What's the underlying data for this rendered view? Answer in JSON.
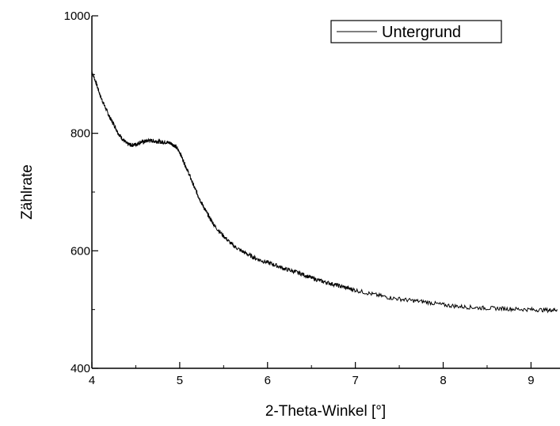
{
  "chart_data": {
    "type": "line",
    "title": "",
    "xlabel": "2-Theta-Winkel [°]",
    "ylabel": "Zählrate",
    "xlim": [
      4,
      9.33
    ],
    "ylim": [
      400,
      1000
    ],
    "x_ticks": [
      4,
      5,
      6,
      7,
      8,
      9
    ],
    "y_ticks": [
      400,
      600,
      800,
      1000
    ],
    "x_tick_labels": [
      "4",
      "5",
      "6",
      "7",
      "8",
      "9"
    ],
    "y_tick_labels": [
      "400",
      "600",
      "800",
      "1000"
    ],
    "grid": false,
    "legend": "top-right",
    "series": [
      {
        "name": "Untergrund",
        "color": "#000000",
        "x": [
          4.0,
          4.05,
          4.1,
          4.15,
          4.2,
          4.25,
          4.3,
          4.35,
          4.4,
          4.45,
          4.5,
          4.55,
          4.6,
          4.65,
          4.7,
          4.75,
          4.8,
          4.85,
          4.9,
          4.95,
          5.0,
          5.05,
          5.1,
          5.15,
          5.2,
          5.25,
          5.3,
          5.35,
          5.4,
          5.5,
          5.6,
          5.7,
          5.8,
          5.9,
          6.0,
          6.1,
          6.2,
          6.3,
          6.4,
          6.5,
          6.6,
          6.7,
          6.8,
          6.9,
          7.0,
          7.2,
          7.4,
          7.6,
          7.8,
          8.0,
          8.2,
          8.4,
          8.6,
          8.8,
          9.0,
          9.2,
          9.3
        ],
        "y": [
          905,
          885,
          862,
          845,
          828,
          815,
          800,
          790,
          782,
          780,
          781,
          785,
          786,
          788,
          787,
          786,
          785,
          785,
          783,
          778,
          768,
          750,
          733,
          714,
          697,
          681,
          667,
          654,
          642,
          625,
          610,
          600,
          592,
          585,
          580,
          575,
          569,
          565,
          560,
          554,
          549,
          545,
          541,
          537,
          533,
          526,
          520,
          516,
          513,
          508,
          505,
          503,
          502,
          501,
          500,
          499,
          500
        ]
      }
    ]
  }
}
